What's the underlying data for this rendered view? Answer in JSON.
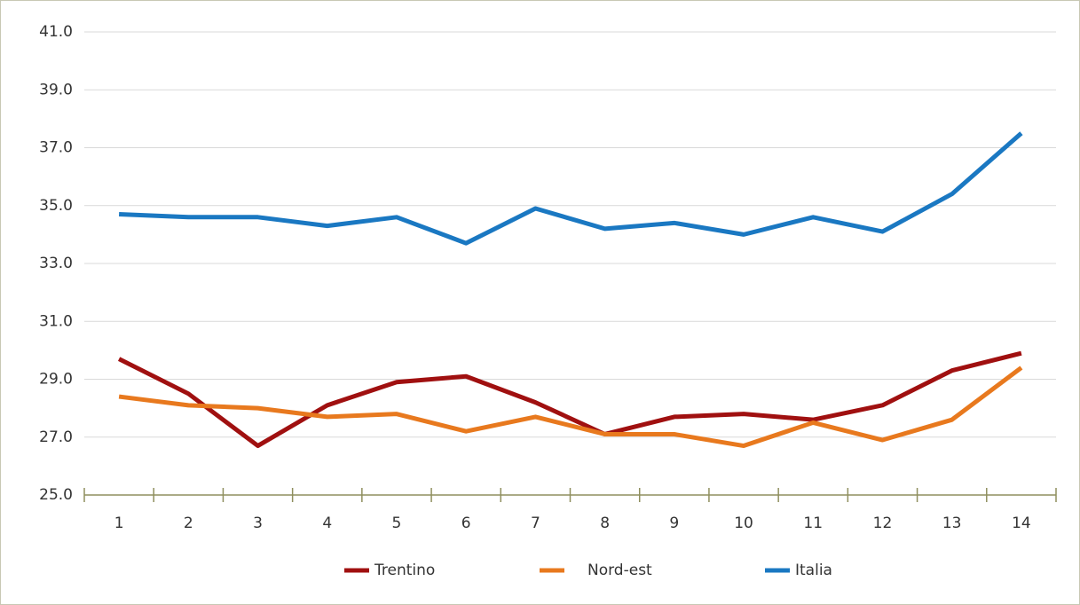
{
  "chart_data": {
    "type": "line",
    "categories": [
      "1",
      "2",
      "3",
      "4",
      "5",
      "6",
      "7",
      "8",
      "9",
      "10",
      "11",
      "12",
      "13",
      "14"
    ],
    "series": [
      {
        "name": "Trentino",
        "color": "#a01010",
        "values": [
          29.7,
          28.5,
          26.7,
          28.1,
          28.9,
          29.1,
          28.2,
          27.1,
          27.7,
          27.8,
          27.6,
          28.1,
          29.3,
          29.9
        ]
      },
      {
        "name": "Nord-est",
        "color": "#e8791e",
        "values": [
          28.4,
          28.1,
          28.0,
          27.7,
          27.8,
          27.2,
          27.7,
          27.1,
          27.1,
          26.7,
          27.5,
          26.9,
          27.6,
          29.4
        ]
      },
      {
        "name": "Italia",
        "color": "#1a78c2",
        "values": [
          34.7,
          34.6,
          34.6,
          34.3,
          34.6,
          33.7,
          34.9,
          34.2,
          34.4,
          34.0,
          34.6,
          34.1,
          35.4,
          37.5
        ]
      }
    ],
    "ylim": [
      25,
      41
    ],
    "yticks": [
      {
        "value": 25,
        "label": "25.0"
      },
      {
        "value": 27,
        "label": "27.0"
      },
      {
        "value": 29,
        "label": "29.0"
      },
      {
        "value": 31,
        "label": "31.0"
      },
      {
        "value": 33,
        "label": "33.0"
      },
      {
        "value": 35,
        "label": "35.0"
      },
      {
        "value": 37,
        "label": "37.0"
      },
      {
        "value": 39,
        "label": "39.0"
      },
      {
        "value": 41,
        "label": "41.0"
      }
    ],
    "grid": true,
    "legend": "bottom"
  }
}
